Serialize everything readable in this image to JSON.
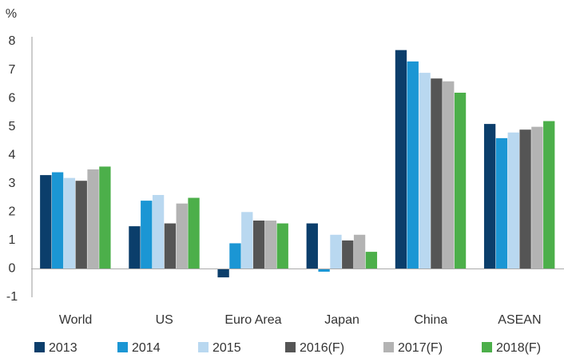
{
  "chart_data": {
    "type": "bar",
    "y_axis_label": "%",
    "categories": [
      "World",
      "US",
      "Euro Area",
      "Japan",
      "China",
      "ASEAN"
    ],
    "series": [
      {
        "name": "2013",
        "color": "#0b3e6b",
        "values": [
          3.3,
          1.5,
          -0.3,
          1.6,
          7.7,
          5.1
        ]
      },
      {
        "name": "2014",
        "color": "#1b96d4",
        "values": [
          3.4,
          2.4,
          0.9,
          -0.1,
          7.3,
          4.6
        ]
      },
      {
        "name": "2015",
        "color": "#b9d8f0",
        "values": [
          3.2,
          2.6,
          2.0,
          1.2,
          6.9,
          4.8
        ]
      },
      {
        "name": "2016(F)",
        "color": "#555555",
        "values": [
          3.1,
          1.6,
          1.7,
          1.0,
          6.7,
          4.9
        ]
      },
      {
        "name": "2017(F)",
        "color": "#b3b3b3",
        "values": [
          3.5,
          2.3,
          1.7,
          1.2,
          6.6,
          5.0
        ]
      },
      {
        "name": "2018(F)",
        "color": "#4caf4a",
        "values": [
          3.6,
          2.5,
          1.6,
          0.6,
          6.2,
          5.2
        ]
      }
    ],
    "ylim": [
      -1,
      8
    ],
    "yticks": [
      -1,
      0,
      1,
      2,
      3,
      4,
      5,
      6,
      7,
      8
    ]
  }
}
